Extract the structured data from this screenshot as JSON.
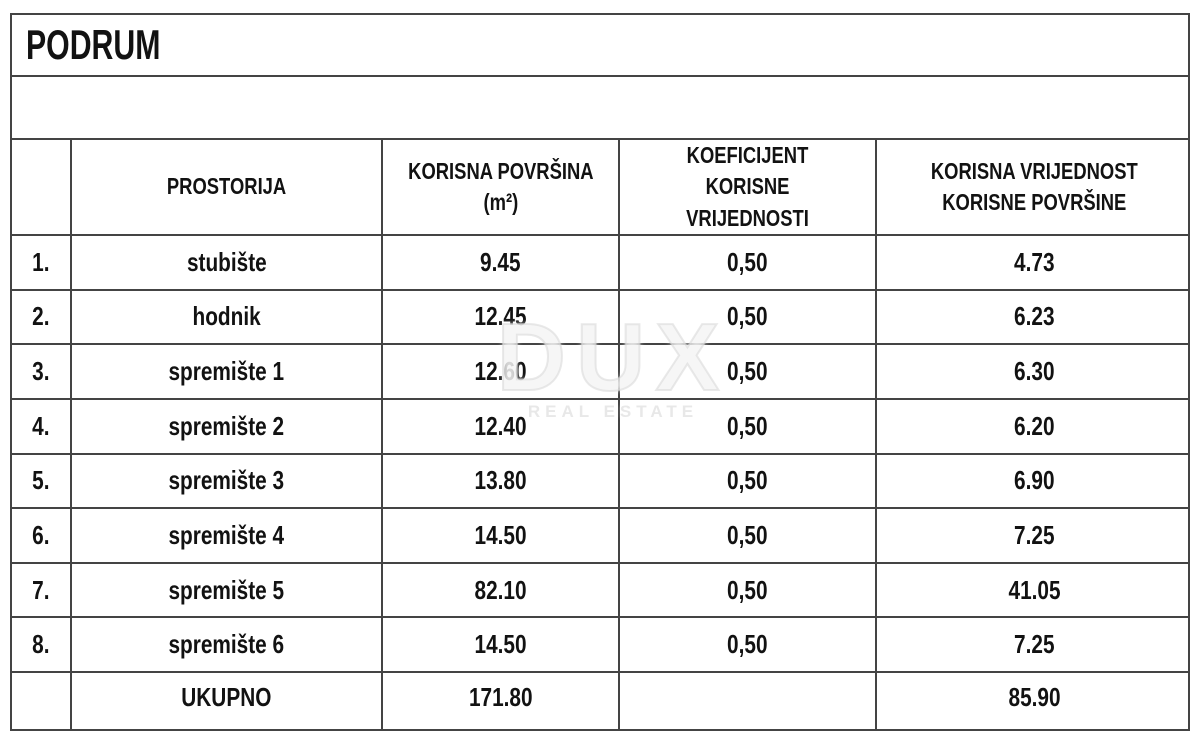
{
  "title": "PODRUM",
  "watermark": {
    "brand": "DUX",
    "tagline": "REAL ESTATE"
  },
  "table": {
    "columns": {
      "num": "",
      "room": "PROSTORIJA",
      "area": "KORISNA POVRŠINA\n(m²)",
      "coef": "KOEFICIJENT KORISNE\nVRIJEDNOSTI",
      "value": "KORISNA VRIJEDNOST\nKORISNE POVRŠINE"
    },
    "rows": [
      {
        "num": "1.",
        "room": "stubište",
        "area": "9.45",
        "coef": "0,50",
        "value": "4.73"
      },
      {
        "num": "2.",
        "room": "hodnik",
        "area": "12.45",
        "coef": "0,50",
        "value": "6.23"
      },
      {
        "num": "3.",
        "room": "spremište 1",
        "area": "12.60",
        "coef": "0,50",
        "value": "6.30"
      },
      {
        "num": "4.",
        "room": "spremište 2",
        "area": "12.40",
        "coef": "0,50",
        "value": "6.20"
      },
      {
        "num": "5.",
        "room": "spremište 3",
        "area": "13.80",
        "coef": "0,50",
        "value": "6.90"
      },
      {
        "num": "6.",
        "room": "spremište 4",
        "area": "14.50",
        "coef": "0,50",
        "value": "7.25"
      },
      {
        "num": "7.",
        "room": "spremište 5",
        "area": "82.10",
        "coef": "0,50",
        "value": "41.05"
      },
      {
        "num": "8.",
        "room": "spremište 6",
        "area": "14.50",
        "coef": "0,50",
        "value": "7.25"
      }
    ],
    "total": {
      "num": "",
      "label": "UKUPNO",
      "area": "171.80",
      "coef": "",
      "value": "85.90"
    }
  },
  "colors": {
    "line": "#444444",
    "ink": "#121212",
    "watermark": "#e9e9e9"
  }
}
